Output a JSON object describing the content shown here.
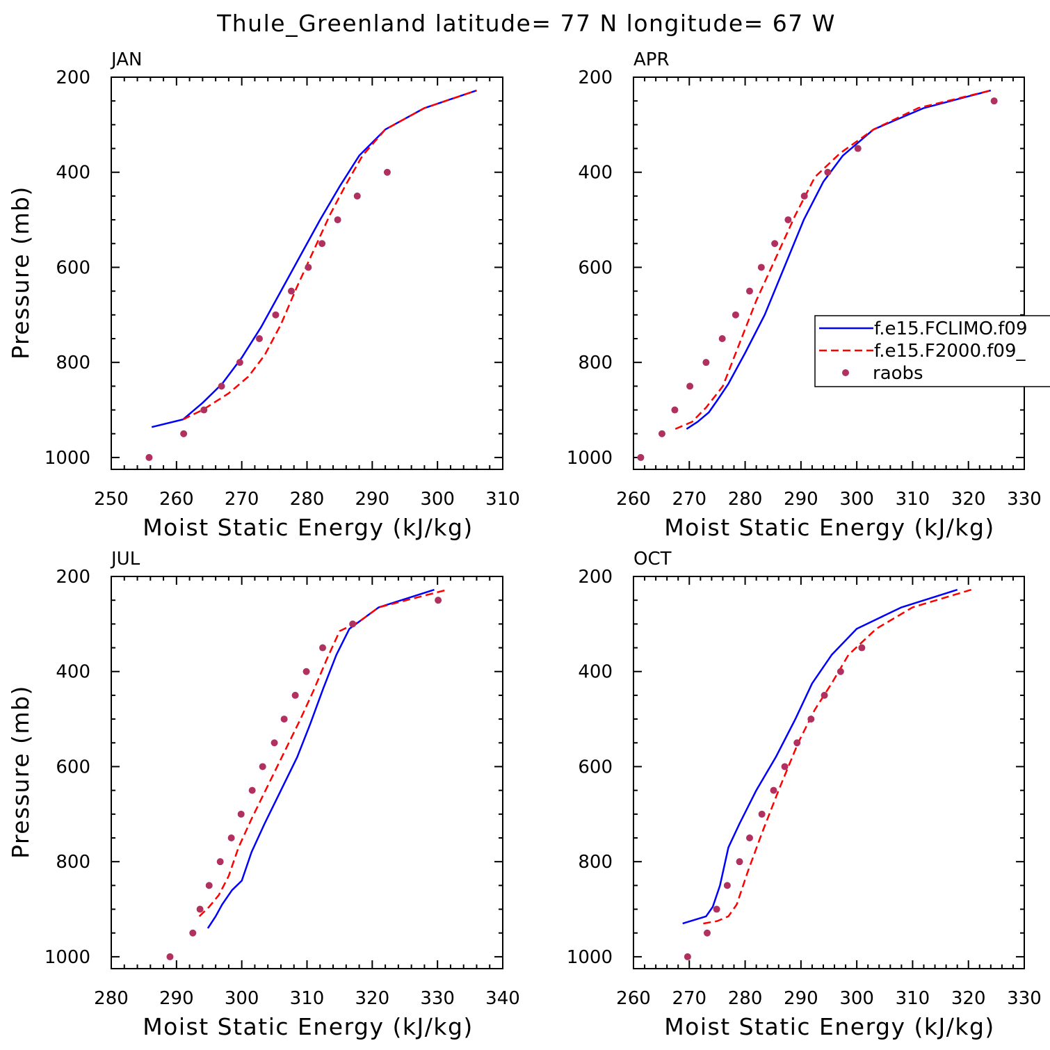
{
  "title": "Thule_Greenland  latitude= 77 N longitude= 67 W",
  "legend": {
    "entries": [
      {
        "label": "f.e15.FCLIMO.f09",
        "color": "#0000ff",
        "style": "solid"
      },
      {
        "label": "f.e15.F2000.f09_",
        "color": "#ff0000",
        "style": "dashed"
      },
      {
        "label": "raobs",
        "color": "#b03060",
        "style": "marker"
      }
    ]
  },
  "chart_data": [
    {
      "type": "line",
      "panel": "JAN",
      "xlabel": "Moist Static Energy (kJ/kg)",
      "ylabel": "Pressure (mb)",
      "xlim": [
        250,
        310
      ],
      "ylim": [
        1025,
        200
      ],
      "xticks": [
        250,
        260,
        270,
        280,
        290,
        300,
        310
      ],
      "yticks": [
        200,
        400,
        600,
        800,
        1000
      ],
      "series": [
        {
          "name": "f.e15.FCLIMO.f09",
          "x": [
            256.2,
            261,
            264,
            267,
            270,
            273,
            276,
            279,
            282,
            285,
            288,
            292,
            298,
            306
          ],
          "y": [
            936,
            920,
            885,
            845,
            790,
            725,
            650,
            575,
            500,
            430,
            365,
            310,
            265,
            228
          ]
        },
        {
          "name": "f.e15.F2000.f09_",
          "x": [
            261,
            264,
            268,
            271,
            273.5,
            276,
            278.5,
            281,
            283.5,
            286,
            288.5,
            292,
            298,
            306
          ],
          "y": [
            920,
            900,
            865,
            830,
            785,
            720,
            640,
            565,
            490,
            425,
            365,
            310,
            265,
            228
          ]
        },
        {
          "name": "raobs",
          "x": [
            255.8,
            261.1,
            264.2,
            266.9,
            269.7,
            272.7,
            275.2,
            277.6,
            280.2,
            282.3,
            284.7,
            287.7,
            292.3
          ],
          "y": [
            1000,
            950,
            900,
            850,
            800,
            750,
            700,
            650,
            600,
            550,
            500,
            450,
            400
          ]
        }
      ]
    },
    {
      "type": "line",
      "panel": "APR",
      "xlabel": "Moist Static Energy (kJ/kg)",
      "ylabel": "",
      "xlim": [
        260,
        330
      ],
      "ylim": [
        1025,
        200
      ],
      "xticks": [
        260,
        270,
        280,
        290,
        300,
        310,
        320,
        330
      ],
      "yticks": [
        200,
        400,
        600,
        800,
        1000
      ],
      "series": [
        {
          "name": "f.e15.FCLIMO.f09",
          "x": [
            269.5,
            271.5,
            273.5,
            275,
            277,
            280,
            283.5,
            287,
            290.5,
            294,
            297.5,
            303,
            312,
            324
          ],
          "y": [
            940,
            925,
            905,
            880,
            845,
            780,
            700,
            600,
            500,
            420,
            365,
            310,
            265,
            228
          ]
        },
        {
          "name": "f.e15.F2000.f09_",
          "x": [
            267.5,
            270.5,
            273,
            276,
            279,
            282,
            285.5,
            289,
            292.5,
            297,
            303,
            311,
            324
          ],
          "y": [
            940,
            925,
            895,
            850,
            760,
            670,
            580,
            490,
            410,
            360,
            310,
            265,
            228
          ]
        },
        {
          "name": "raobs",
          "x": [
            261.3,
            265.1,
            267.4,
            270.1,
            273,
            275.9,
            278.3,
            280.8,
            282.9,
            285.3,
            287.7,
            290.6,
            294.8,
            300.2,
            324.6
          ],
          "y": [
            1000,
            950,
            900,
            850,
            800,
            750,
            700,
            650,
            600,
            550,
            500,
            450,
            400,
            350,
            250
          ]
        }
      ]
    },
    {
      "type": "line",
      "panel": "JUL",
      "xlabel": "Moist Static Energy (kJ/kg)",
      "ylabel": "Pressure (mb)",
      "xlim": [
        280,
        340
      ],
      "ylim": [
        1025,
        200
      ],
      "xticks": [
        280,
        290,
        300,
        310,
        320,
        330,
        340
      ],
      "yticks": [
        200,
        400,
        600,
        800,
        1000
      ],
      "series": [
        {
          "name": "f.e15.FCLIMO.f09",
          "x": [
            294.8,
            296,
            297,
            298.5,
            300,
            301.5,
            303.5,
            306,
            308.5,
            310.5,
            312.5,
            314.5,
            316.5,
            321,
            329.5
          ],
          "y": [
            940,
            915,
            890,
            860,
            840,
            780,
            720,
            650,
            580,
            510,
            435,
            365,
            310,
            265,
            228
          ]
        },
        {
          "name": "f.e15.F2000.f09_",
          "x": [
            293.5,
            295,
            296.5,
            298,
            299.5,
            301.5,
            304,
            306.5,
            309,
            311,
            313,
            315,
            318,
            321,
            331.5
          ],
          "y": [
            915,
            895,
            870,
            830,
            770,
            710,
            640,
            570,
            500,
            440,
            375,
            315,
            295,
            265,
            228
          ]
        },
        {
          "name": "raobs",
          "x": [
            289,
            292.5,
            293.6,
            295,
            296.7,
            298.4,
            299.9,
            301.6,
            303.2,
            305,
            306.5,
            308.2,
            309.9,
            312.4,
            317,
            330.1
          ],
          "y": [
            1000,
            950,
            900,
            850,
            800,
            750,
            700,
            650,
            600,
            550,
            500,
            450,
            400,
            350,
            300,
            250
          ]
        }
      ]
    },
    {
      "type": "line",
      "panel": "OCT",
      "xlabel": "Moist Static Energy (kJ/kg)",
      "ylabel": "",
      "xlim": [
        260,
        330
      ],
      "ylim": [
        1025,
        200
      ],
      "xticks": [
        260,
        270,
        280,
        290,
        300,
        310,
        320,
        330
      ],
      "yticks": [
        200,
        400,
        600,
        800,
        1000
      ],
      "series": [
        {
          "name": "f.e15.FCLIMO.f09",
          "x": [
            268.8,
            273,
            274.2,
            275.5,
            277,
            279,
            282,
            285.5,
            289,
            292,
            295.5,
            300,
            308,
            318
          ],
          "y": [
            930,
            915,
            895,
            850,
            770,
            720,
            650,
            580,
            500,
            425,
            365,
            310,
            265,
            228
          ]
        },
        {
          "name": "f.e15.F2000.f09_",
          "x": [
            272.5,
            275,
            277,
            278.5,
            280.5,
            283,
            286,
            289.5,
            292.5,
            295.5,
            298.5,
            303.5,
            310,
            320.5
          ],
          "y": [
            930,
            925,
            915,
            890,
            820,
            740,
            650,
            550,
            480,
            425,
            365,
            310,
            265,
            228
          ]
        },
        {
          "name": "raobs",
          "x": [
            269.7,
            273.2,
            274.9,
            276.8,
            279,
            280.8,
            283,
            285.1,
            287.1,
            289.3,
            291.8,
            294.2,
            297.1,
            300.9
          ],
          "y": [
            1000,
            950,
            900,
            850,
            800,
            750,
            700,
            650,
            600,
            550,
            500,
            450,
            400,
            350
          ]
        }
      ]
    }
  ]
}
